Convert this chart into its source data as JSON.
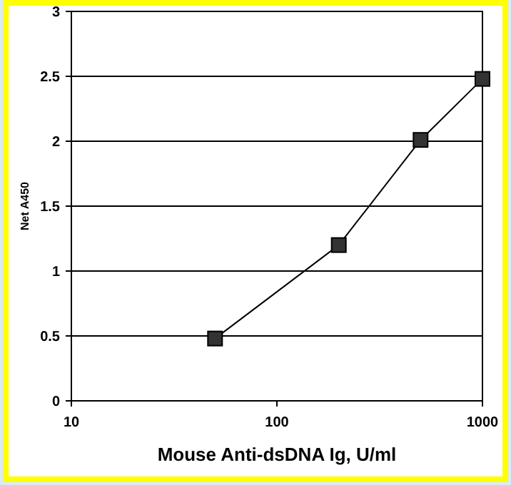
{
  "chart_data": {
    "type": "line",
    "xlabel": "Mouse Anti-dsDNA Ig, U/ml",
    "ylabel": "Net A450",
    "log": "x",
    "x": [
      50,
      200,
      500,
      1000
    ],
    "series": [
      {
        "color": "#000000",
        "values": [
          0.48,
          1.2,
          2.01,
          2.48
        ]
      }
    ],
    "xlim": [
      10,
      1000
    ],
    "xticks": [
      10,
      100,
      1000
    ],
    "ylim": [
      0,
      3
    ],
    "yticks": [
      0,
      0.5,
      1,
      1.5,
      2,
      2.5,
      3
    ],
    "grid": "y",
    "marker": "square",
    "line_style": "solid"
  }
}
